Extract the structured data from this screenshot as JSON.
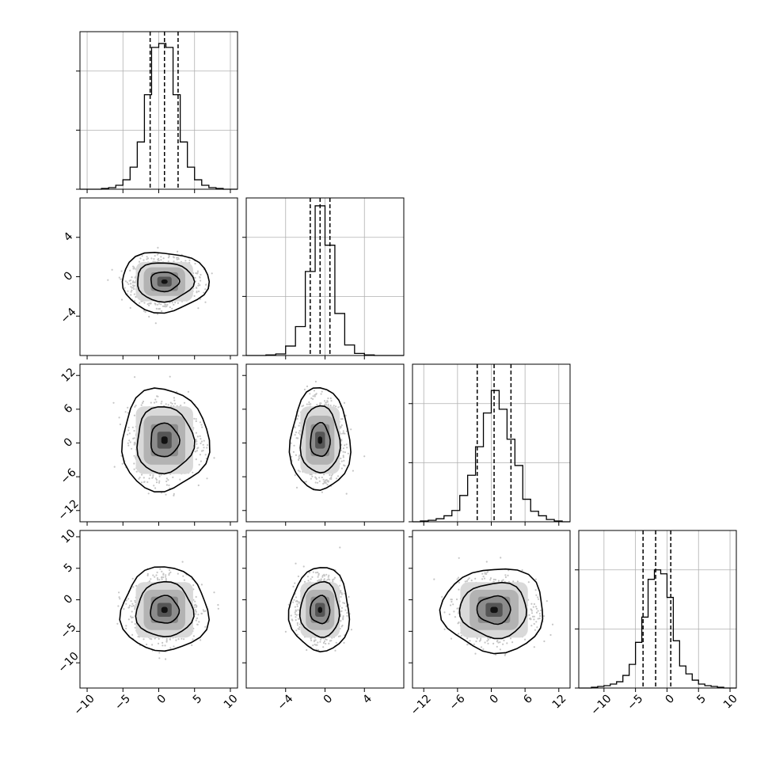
{
  "chart_data": {
    "type": "corner",
    "title": "",
    "n_params": 4,
    "colors": {
      "background": "#ffffff",
      "line": "#000000",
      "grid": "#b0b0b0",
      "points": "#7f7f7f"
    },
    "grid": true,
    "params": [
      {
        "name": "",
        "range": [
          -11,
          11
        ],
        "ticks": [
          -10,
          -5,
          0,
          5,
          10
        ],
        "tick_labels": [
          "−10",
          "−5",
          "0",
          "5",
          "10"
        ],
        "quantiles": [
          -1.2,
          0.8,
          2.7
        ],
        "mean": 0.8,
        "sd": 2.0,
        "hist_edges": [
          -11,
          -10,
          -9,
          -8,
          -7,
          -6,
          -5,
          -4,
          -3,
          -2,
          -1,
          0,
          1,
          2,
          3,
          4,
          5,
          6,
          7,
          8,
          9,
          10,
          11
        ],
        "hist_counts": [
          0,
          0,
          0,
          1,
          2,
          5,
          12,
          28,
          60,
          120,
          180,
          185,
          180,
          120,
          60,
          28,
          12,
          5,
          2,
          1,
          0,
          0
        ],
        "hist_ylim": [
          0,
          200
        ]
      },
      {
        "name": "",
        "range": [
          -8,
          8
        ],
        "ticks": [
          -4,
          0,
          4
        ],
        "tick_labels": [
          "−4",
          "0",
          "4"
        ],
        "quantiles": [
          -1.5,
          -0.5,
          0.5
        ],
        "mean": -0.5,
        "sd": 1.0,
        "hist_edges": [
          -8,
          -7,
          -6,
          -5,
          -4,
          -3,
          -2,
          -1,
          0,
          1,
          2,
          3,
          4,
          5,
          6,
          7,
          8
        ],
        "hist_counts": [
          0,
          0,
          1,
          3,
          18,
          55,
          160,
          285,
          210,
          80,
          20,
          4,
          1,
          0,
          0,
          0
        ],
        "hist_ylim": [
          0,
          300
        ]
      },
      {
        "name": "",
        "range": [
          -14,
          14
        ],
        "ticks": [
          -12,
          -6,
          0,
          6,
          12
        ],
        "tick_labels": [
          "−12",
          "−6",
          "0",
          "6",
          "12"
        ],
        "quantiles": [
          -2.5,
          0.5,
          3.5
        ],
        "mean": 0.5,
        "sd": 3.0,
        "hist_edges": [
          -14,
          -12.6,
          -11.2,
          -9.8,
          -8.4,
          -7,
          -5.6,
          -4.2,
          -2.8,
          -1.4,
          0,
          1.4,
          2.8,
          4.2,
          5.6,
          7,
          8.4,
          9.8,
          11.2,
          12.6,
          14
        ],
        "hist_counts": [
          0,
          1,
          2,
          4,
          8,
          15,
          35,
          62,
          100,
          145,
          175,
          150,
          110,
          75,
          30,
          14,
          8,
          3,
          1,
          0
        ],
        "hist_ylim": [
          0,
          210
        ]
      },
      {
        "name": "",
        "range": [
          -14,
          11
        ],
        "ticks": [
          -10,
          -5,
          0,
          5,
          10
        ],
        "tick_labels": [
          "−10",
          "−5",
          "0",
          "5",
          "10"
        ],
        "quantiles": [
          -3.8,
          -1.8,
          0.6
        ],
        "mean": -1.6,
        "sd": 2.2,
        "hist_edges": [
          -14,
          -13,
          -12,
          -11,
          -10,
          -9,
          -8,
          -7,
          -6,
          -5,
          -4,
          -3,
          -2,
          -1,
          0,
          1,
          2,
          3,
          4,
          5,
          6,
          7,
          8,
          9,
          10,
          11
        ],
        "hist_counts": [
          0,
          0,
          1,
          2,
          3,
          5,
          8,
          16,
          30,
          58,
          90,
          138,
          150,
          145,
          115,
          60,
          28,
          18,
          10,
          5,
          3,
          2,
          1,
          0,
          0
        ],
        "hist_ylim": [
          0,
          200
        ]
      }
    ],
    "row_tick_labels": [
      null,
      {
        "ticks": [
          4,
          0,
          -4
        ],
        "tick_labels": [
          "4",
          "0",
          "−4"
        ]
      },
      {
        "ticks": [
          12,
          6,
          0,
          -6,
          -12
        ],
        "tick_labels": [
          "12",
          "6",
          "0",
          "−6",
          "−12"
        ]
      },
      {
        "ticks": [
          10,
          5,
          0,
          -5,
          -10
        ],
        "tick_labels": [
          "10",
          "5",
          "0",
          "−5",
          "−10"
        ]
      }
    ],
    "scatter_points_per_panel": 1400,
    "contour_levels": [
      0.39,
      0.86,
      0.99
    ]
  }
}
